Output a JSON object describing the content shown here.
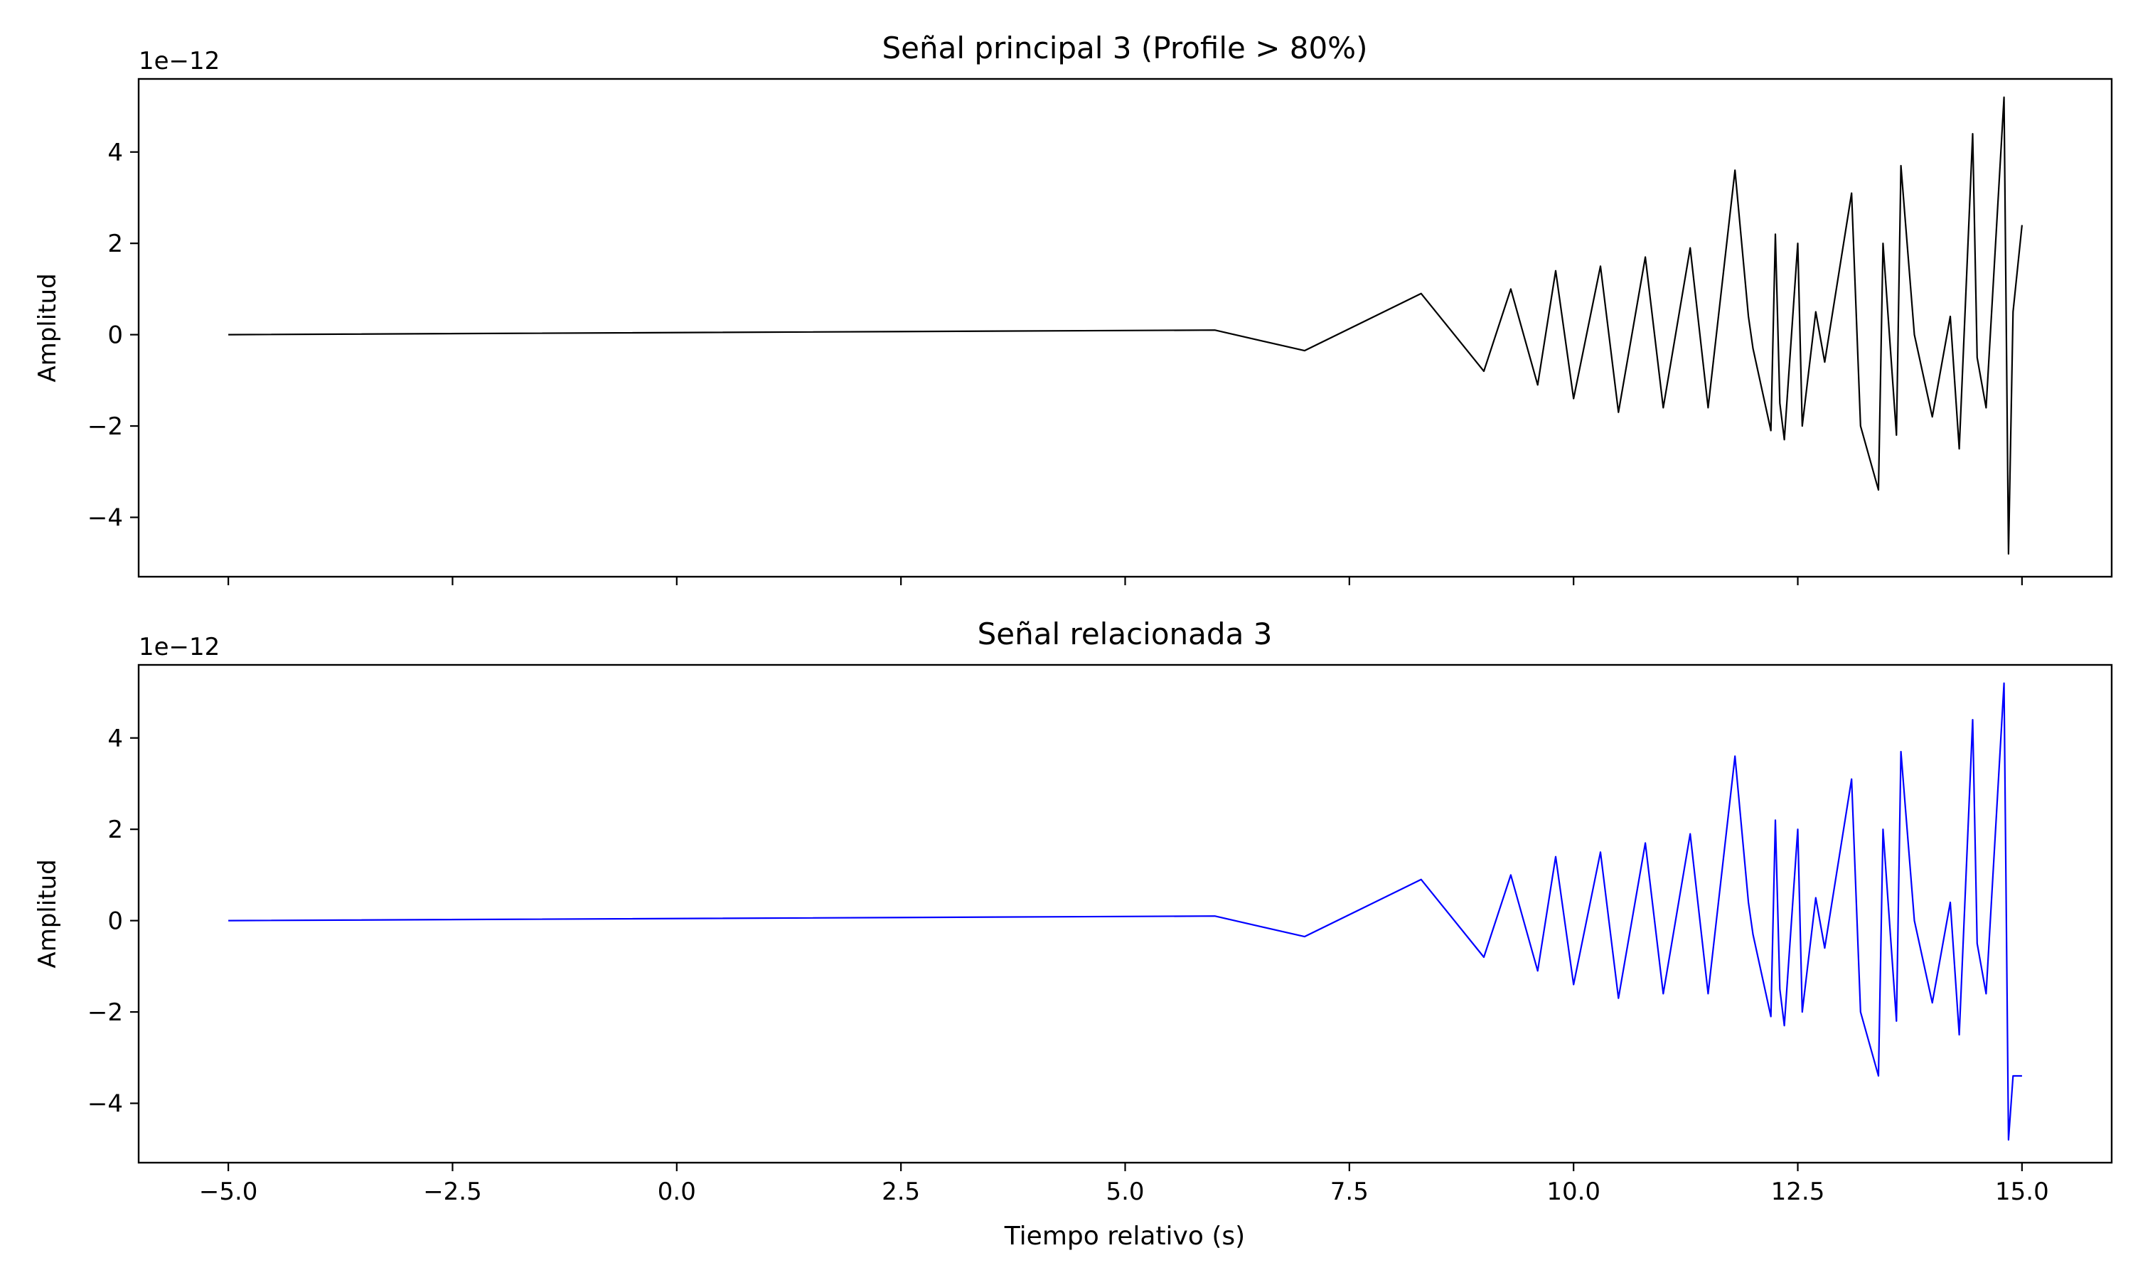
{
  "figure": {
    "xlabel": "Tiempo relativo (s)",
    "xlim": [
      -6.0,
      16.0
    ],
    "x_ticks": [
      -5.0,
      -2.5,
      0.0,
      2.5,
      5.0,
      7.5,
      10.0,
      12.5,
      15.0
    ],
    "x_tick_labels": [
      "−5.0",
      "−2.5",
      "0.0",
      "2.5",
      "5.0",
      "7.5",
      "10.0",
      "12.5",
      "15.0"
    ]
  },
  "chart_data": [
    {
      "type": "line",
      "title": "Señal principal 3 (Profile > 80%)",
      "ylabel": "Amplitud",
      "offset_text": "1e−12",
      "color": "#000000",
      "xlim": [
        -6.0,
        16.0
      ],
      "ylim": [
        -5.3,
        5.6
      ],
      "y_ticks": [
        -4,
        -2,
        0,
        2,
        4
      ],
      "y_tick_labels": [
        "−4",
        "−2",
        "0",
        "2",
        "4"
      ],
      "series": [
        {
          "x": [
            -5.0,
            6.0,
            7.0,
            8.3,
            9.0,
            9.3,
            9.6,
            9.8,
            10.0,
            10.3,
            10.5,
            10.8,
            11.0,
            11.3,
            11.5,
            11.8,
            11.95,
            12.0,
            12.2,
            12.25,
            12.3,
            12.35,
            12.5,
            12.55,
            12.7,
            12.8,
            13.1,
            13.2,
            13.4,
            13.45,
            13.6,
            13.65,
            13.8,
            14.0,
            14.2,
            14.3,
            14.45,
            14.5,
            14.6,
            14.8,
            14.85,
            14.9,
            15.0
          ],
          "y": [
            0.0,
            0.1,
            -0.35,
            0.9,
            -0.8,
            1.0,
            -1.1,
            1.4,
            -1.4,
            1.5,
            -1.7,
            1.7,
            -1.6,
            1.9,
            -1.6,
            3.6,
            0.4,
            -0.3,
            -2.1,
            2.2,
            -1.5,
            -2.3,
            2.0,
            -2.0,
            0.5,
            -0.6,
            3.1,
            -2.0,
            -3.4,
            2.0,
            -2.2,
            3.7,
            0.0,
            -1.8,
            0.4,
            -2.5,
            4.4,
            -0.5,
            -1.6,
            5.2,
            -4.8,
            0.5,
            2.4
          ]
        }
      ]
    },
    {
      "type": "line",
      "title": "Señal relacionada 3",
      "ylabel": "Amplitud",
      "offset_text": "1e−12",
      "color": "#0000ff",
      "xlim": [
        -6.0,
        16.0
      ],
      "ylim": [
        -5.3,
        5.6
      ],
      "y_ticks": [
        -4,
        -2,
        0,
        2,
        4
      ],
      "y_tick_labels": [
        "−4",
        "−2",
        "0",
        "2",
        "4"
      ],
      "series": [
        {
          "x": [
            -5.0,
            6.0,
            7.0,
            8.3,
            9.0,
            9.3,
            9.6,
            9.8,
            10.0,
            10.3,
            10.5,
            10.8,
            11.0,
            11.3,
            11.5,
            11.8,
            11.95,
            12.0,
            12.2,
            12.25,
            12.3,
            12.35,
            12.5,
            12.55,
            12.7,
            12.8,
            13.1,
            13.2,
            13.4,
            13.45,
            13.6,
            13.65,
            13.8,
            14.0,
            14.2,
            14.3,
            14.45,
            14.5,
            14.6,
            14.8,
            14.85,
            14.9,
            15.0
          ],
          "y": [
            0.0,
            0.1,
            -0.35,
            0.9,
            -0.8,
            1.0,
            -1.1,
            1.4,
            -1.4,
            1.5,
            -1.7,
            1.7,
            -1.6,
            1.9,
            -1.6,
            3.6,
            0.4,
            -0.3,
            -2.1,
            2.2,
            -1.5,
            -2.3,
            2.0,
            -2.0,
            0.5,
            -0.6,
            3.1,
            -2.0,
            -3.4,
            2.0,
            -2.2,
            3.7,
            0.0,
            -1.8,
            0.4,
            -2.5,
            4.4,
            -0.5,
            -1.6,
            5.2,
            -4.8,
            -3.4,
            -3.4
          ]
        }
      ]
    }
  ]
}
